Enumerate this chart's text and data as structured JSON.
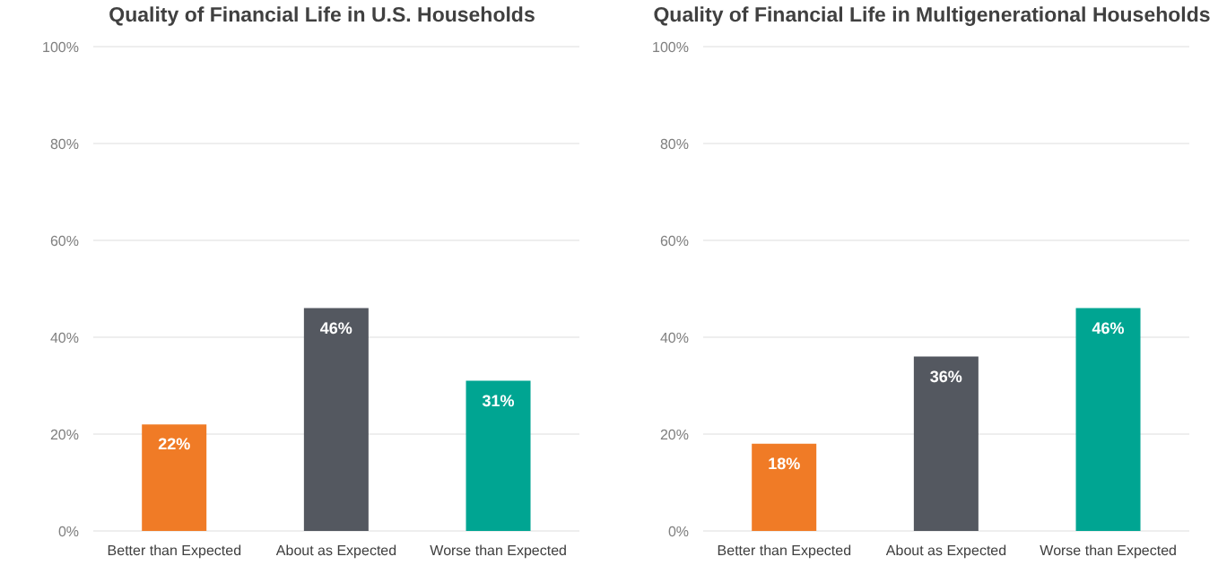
{
  "chart_data": [
    {
      "type": "bar",
      "title": "Quality of Financial Life in U.S. Households",
      "categories": [
        "Better than Expected",
        "About as Expected",
        "Worse than Expected"
      ],
      "values": [
        22,
        46,
        31
      ],
      "colors": [
        "#f07b26",
        "#545860",
        "#00a592"
      ],
      "value_labels": [
        "22%",
        "46%",
        "31%"
      ],
      "ylim": [
        0,
        100
      ],
      "yticks": [
        {
          "value": 0,
          "label": "0%"
        },
        {
          "value": 20,
          "label": "20%"
        },
        {
          "value": 40,
          "label": "40%"
        },
        {
          "value": 60,
          "label": "60%"
        },
        {
          "value": 80,
          "label": "80%"
        },
        {
          "value": 100,
          "label": "100%"
        }
      ],
      "grid": "y"
    },
    {
      "type": "bar",
      "title": "Quality of Financial Life in Multigenerational Households",
      "categories": [
        "Better than Expected",
        "About as Expected",
        "Worse than Expected"
      ],
      "values": [
        18,
        36,
        46
      ],
      "colors": [
        "#f07b26",
        "#545860",
        "#00a592"
      ],
      "value_labels": [
        "18%",
        "36%",
        "46%"
      ],
      "ylim": [
        0,
        100
      ],
      "yticks": [
        {
          "value": 0,
          "label": "0%"
        },
        {
          "value": 20,
          "label": "20%"
        },
        {
          "value": 40,
          "label": "40%"
        },
        {
          "value": 60,
          "label": "60%"
        },
        {
          "value": 80,
          "label": "80%"
        },
        {
          "value": 100,
          "label": "100%"
        }
      ],
      "grid": "y"
    }
  ]
}
